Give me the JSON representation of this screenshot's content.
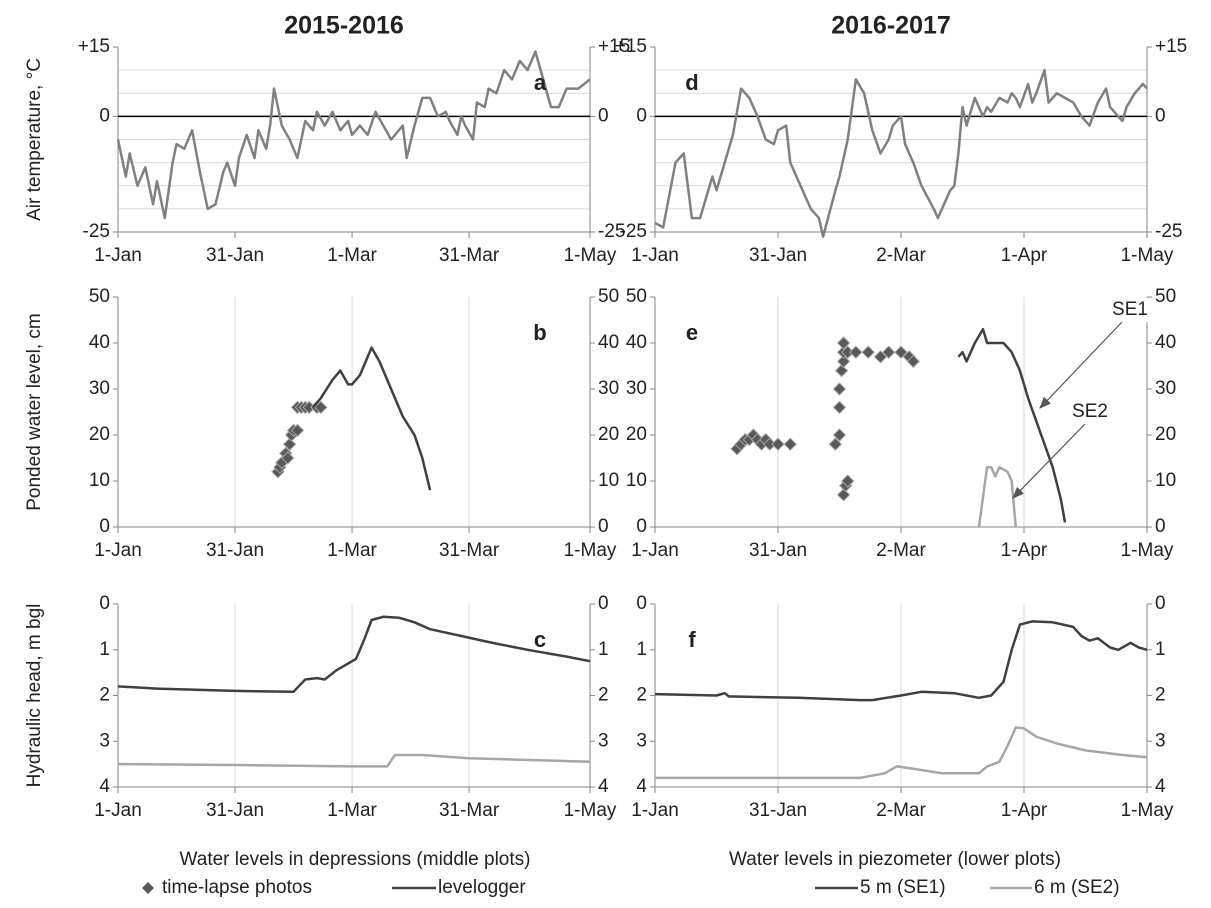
{
  "chart_data": [
    {
      "type": "line",
      "title": "2015-2016",
      "ylabel": "Air temperature, °C",
      "annotation": "a",
      "xlim": [
        0,
        121
      ],
      "xticks": [
        {
          "value": 0,
          "label": "1-Jan"
        },
        {
          "value": 30,
          "label": "31-Jan"
        },
        {
          "value": 60,
          "label": "1-Mar"
        },
        {
          "value": 90,
          "label": "31-Mar"
        },
        {
          "value": 121,
          "label": "1-May"
        }
      ],
      "ylim": [
        -25,
        15
      ],
      "yticks": [
        -25,
        0,
        {
          "value": 15,
          "label": "+15"
        }
      ],
      "ygrid": [
        -20,
        -15,
        -10,
        -5,
        5,
        10
      ],
      "zero_line": true,
      "xgrid": false,
      "series": [
        {
          "type": "line",
          "color": "#808080",
          "x": [
            0,
            2,
            3,
            5,
            7,
            9,
            10,
            12,
            14,
            15,
            17,
            19,
            21,
            23,
            25,
            27,
            28,
            30,
            31,
            33,
            35,
            36,
            38,
            39,
            40,
            42,
            44,
            46,
            48,
            50,
            51,
            53,
            55,
            57,
            59,
            60,
            62,
            64,
            66,
            68,
            70,
            71,
            73,
            74,
            76,
            78,
            80,
            82,
            84,
            85,
            87,
            88,
            89,
            91,
            92,
            94,
            95,
            97,
            99,
            101,
            103,
            105,
            107,
            109,
            111,
            113,
            115,
            118,
            121
          ],
          "values": [
            -5,
            -13,
            -8,
            -15,
            -11,
            -19,
            -14,
            -22,
            -10,
            -6,
            -7,
            -3,
            -12,
            -20,
            -19,
            -12,
            -10,
            -15,
            -9,
            -4,
            -9,
            -3,
            -7,
            -2,
            6,
            -2,
            -5,
            -9,
            -1,
            -3,
            1,
            -2,
            1,
            -3,
            -1,
            -4,
            -2,
            -4,
            1,
            -2,
            -5,
            -4,
            -2,
            -9,
            -2,
            4,
            4,
            0,
            1,
            -1,
            -4,
            0,
            -2,
            -5,
            3,
            2,
            6,
            5,
            10,
            8,
            12,
            10,
            14,
            8,
            2,
            2,
            6,
            6,
            8
          ]
        }
      ]
    },
    {
      "type": "line",
      "ylabel": "Ponded water level, cm",
      "annotation": "b",
      "xlim": [
        0,
        121
      ],
      "xticks": [
        {
          "value": 0,
          "label": "1-Jan"
        },
        {
          "value": 30,
          "label": "31-Jan"
        },
        {
          "value": 60,
          "label": "1-Mar"
        },
        {
          "value": 90,
          "label": "31-Mar"
        },
        {
          "value": 121,
          "label": "1-May"
        }
      ],
      "ylim": [
        0,
        50
      ],
      "yticks": [
        0,
        10,
        20,
        30,
        40,
        50
      ],
      "xgrid": true,
      "series": [
        {
          "type": "scatter",
          "marker": "diamond",
          "color": "#595959",
          "x": [
            41,
            41.5,
            42,
            43,
            43.5,
            44,
            44.5,
            45,
            46,
            46,
            47,
            48,
            49,
            51,
            52
          ],
          "values": [
            12,
            13,
            14,
            16,
            15,
            18,
            20,
            21,
            21,
            26,
            26,
            26,
            26,
            26,
            26
          ]
        },
        {
          "type": "line",
          "color": "#404040",
          "x": [
            50,
            52,
            55,
            57,
            59,
            60,
            62,
            64,
            65,
            67,
            68,
            70,
            73,
            76,
            78,
            80
          ],
          "values": [
            26,
            28,
            32,
            34,
            31,
            31,
            33,
            37,
            39,
            36,
            34,
            30,
            24,
            20,
            15,
            8
          ]
        }
      ]
    },
    {
      "type": "line",
      "ylabel": "Hydraulic head, m bgl",
      "annotation": "c",
      "xlim": [
        0,
        121
      ],
      "xticks": [
        {
          "value": 0,
          "label": "1-Jan"
        },
        {
          "value": 30,
          "label": "31-Jan"
        },
        {
          "value": 60,
          "label": "1-Mar"
        },
        {
          "value": 90,
          "label": "31-Mar"
        },
        {
          "value": 121,
          "label": "1-May"
        }
      ],
      "ylim": [
        0,
        4
      ],
      "yticks": [
        0,
        1,
        2,
        3,
        4
      ],
      "invert_y": true,
      "xgrid": true,
      "series": [
        {
          "type": "line",
          "color": "#404040",
          "x": [
            0,
            10,
            30,
            45,
            48,
            51,
            53,
            56,
            59,
            61,
            63,
            65,
            68,
            72,
            76,
            80,
            88,
            96,
            105,
            115,
            121
          ],
          "values": [
            1.8,
            1.85,
            1.9,
            1.92,
            1.65,
            1.62,
            1.65,
            1.45,
            1.3,
            1.2,
            0.8,
            0.35,
            0.28,
            0.3,
            0.4,
            0.55,
            0.7,
            0.85,
            1.0,
            1.15,
            1.25
          ]
        },
        {
          "type": "line",
          "color": "#a6a6a6",
          "x": [
            0,
            30,
            60,
            69,
            71,
            78,
            90,
            110,
            121
          ],
          "values": [
            3.5,
            3.52,
            3.55,
            3.55,
            3.3,
            3.3,
            3.37,
            3.42,
            3.45
          ]
        }
      ]
    },
    {
      "type": "line",
      "title": "2016-2017",
      "annotation": "d",
      "xlim": [
        0,
        120
      ],
      "xticks": [
        {
          "value": 0,
          "label": "1-Jan"
        },
        {
          "value": 30,
          "label": "31-Jan"
        },
        {
          "value": 60,
          "label": "2-Mar"
        },
        {
          "value": 90,
          "label": "1-Apr"
        },
        {
          "value": 120,
          "label": "1-May"
        }
      ],
      "ylim": [
        -25,
        15
      ],
      "yticks": [
        -25,
        0,
        {
          "value": 15,
          "label": "+15"
        }
      ],
      "ygrid": [
        -20,
        -15,
        -10,
        -5,
        5,
        10
      ],
      "zero_line": true,
      "xgrid": false,
      "series": [
        {
          "type": "line",
          "color": "#808080",
          "x": [
            0,
            2,
            5,
            7,
            9,
            11,
            14,
            15,
            17,
            19,
            21,
            23,
            25,
            27,
            29,
            30,
            32,
            33,
            35,
            38,
            40,
            41,
            44,
            45,
            47,
            49,
            51,
            53,
            55,
            57,
            58,
            60,
            61,
            63,
            65,
            68,
            69,
            70,
            72,
            73,
            74,
            75,
            76,
            78,
            80,
            81,
            82,
            84,
            86,
            87,
            88,
            89,
            91,
            92,
            93,
            95,
            96,
            98,
            100,
            102,
            104,
            106,
            108,
            110,
            111,
            113,
            114,
            115,
            117,
            119,
            120
          ],
          "values": [
            -23,
            -24,
            -10,
            -8,
            -22,
            -22,
            -13,
            -16,
            -10,
            -4,
            6,
            4,
            0,
            -5,
            -6,
            -3,
            -2,
            -10,
            -14,
            -20,
            -22,
            -26,
            -16,
            -13,
            -5,
            8,
            5,
            -3,
            -8,
            -5,
            -2,
            0,
            -6,
            -10,
            -15,
            -20,
            -22,
            -20,
            -16,
            -15,
            -8,
            2,
            -2,
            4,
            0,
            2,
            1,
            4,
            3,
            5,
            4,
            2,
            7,
            3,
            5,
            10,
            3,
            5,
            4,
            3,
            0,
            -2,
            3,
            6,
            2,
            0,
            -1,
            2,
            5,
            7,
            6
          ]
        }
      ]
    },
    {
      "type": "line",
      "annotation": "e",
      "annotations": [
        "SE1",
        "SE2"
      ],
      "xlim": [
        0,
        120
      ],
      "xticks": [
        {
          "value": 0,
          "label": "1-Jan"
        },
        {
          "value": 30,
          "label": "31-Jan"
        },
        {
          "value": 60,
          "label": "2-Mar"
        },
        {
          "value": 90,
          "label": "1-Apr"
        },
        {
          "value": 120,
          "label": "1-May"
        }
      ],
      "ylim": [
        0,
        50
      ],
      "yticks": [
        0,
        10,
        20,
        30,
        40,
        50
      ],
      "xgrid": true,
      "series": [
        {
          "type": "scatter",
          "marker": "diamond",
          "color": "#595959",
          "x": [
            20,
            21,
            22,
            23,
            24,
            25,
            26,
            27,
            28,
            30,
            33,
            44,
            45,
            45,
            45,
            45.5,
            46,
            46,
            46,
            46,
            46.5,
            47,
            47,
            49,
            52,
            55,
            57,
            60,
            62,
            63
          ],
          "values": [
            17,
            18,
            19,
            19,
            20,
            19,
            18,
            19,
            18,
            18,
            18,
            18,
            20,
            26,
            30,
            34,
            36,
            38,
            40,
            7,
            9,
            10,
            38,
            38,
            38,
            37,
            38,
            38,
            37,
            36
          ]
        },
        {
          "type": "line",
          "color": "#404040",
          "x": [
            74,
            75,
            76,
            78,
            80,
            81,
            83,
            85,
            87,
            89,
            91,
            93,
            95,
            97,
            99,
            100
          ],
          "values": [
            37,
            38,
            36,
            40,
            43,
            40,
            40,
            40,
            38,
            34,
            28,
            23,
            18,
            13,
            6,
            1
          ]
        },
        {
          "type": "line",
          "color": "#a6a6a6",
          "x": [
            79,
            81,
            82,
            83,
            84,
            86,
            87,
            88
          ],
          "values": [
            0,
            13,
            13,
            11,
            13,
            12,
            10,
            0
          ]
        }
      ]
    },
    {
      "type": "line",
      "annotation": "f",
      "xlim": [
        0,
        120
      ],
      "xticks": [
        {
          "value": 0,
          "label": "1-Jan"
        },
        {
          "value": 30,
          "label": "31-Jan"
        },
        {
          "value": 60,
          "label": "2-Mar"
        },
        {
          "value": 90,
          "label": "1-Apr"
        },
        {
          "value": 120,
          "label": "1-May"
        }
      ],
      "ylim": [
        0,
        4
      ],
      "yticks": [
        0,
        1,
        2,
        3,
        4
      ],
      "invert_y": true,
      "xgrid": true,
      "series": [
        {
          "type": "line",
          "color": "#404040",
          "x": [
            0,
            15,
            17,
            18,
            35,
            50,
            53,
            60,
            65,
            73,
            79,
            82,
            85,
            87,
            89,
            92,
            97,
            102,
            104,
            106,
            108,
            111,
            113,
            116,
            118,
            120
          ],
          "values": [
            1.97,
            2.0,
            1.95,
            2.02,
            2.05,
            2.1,
            2.1,
            2.0,
            1.92,
            1.95,
            2.05,
            2.0,
            1.7,
            1.0,
            0.45,
            0.38,
            0.4,
            0.5,
            0.7,
            0.8,
            0.75,
            0.95,
            1.0,
            0.85,
            0.95,
            1.0
          ]
        },
        {
          "type": "line",
          "color": "#a6a6a6",
          "x": [
            0,
            50,
            56,
            59,
            63,
            70,
            79,
            81,
            84,
            86,
            88,
            90,
            93,
            98,
            105,
            114,
            120
          ],
          "values": [
            3.8,
            3.8,
            3.7,
            3.55,
            3.6,
            3.7,
            3.7,
            3.55,
            3.45,
            3.1,
            2.7,
            2.72,
            2.9,
            3.05,
            3.2,
            3.3,
            3.35
          ]
        }
      ]
    }
  ],
  "legend": {
    "groups": [
      {
        "title": "Water levels in depressions (middle plots)",
        "items": [
          {
            "label": "time-lapse photos",
            "marker": "diamond",
            "color": "#595959"
          },
          {
            "label": "levelogger",
            "marker": "line",
            "color": "#404040"
          }
        ]
      },
      {
        "title": "Water levels in piezometer (lower plots)",
        "items": [
          {
            "label": "5 m (SE1)",
            "marker": "line",
            "color": "#404040"
          },
          {
            "label": "6 m (SE2)",
            "marker": "line",
            "color": "#a6a6a6"
          }
        ]
      }
    ]
  }
}
